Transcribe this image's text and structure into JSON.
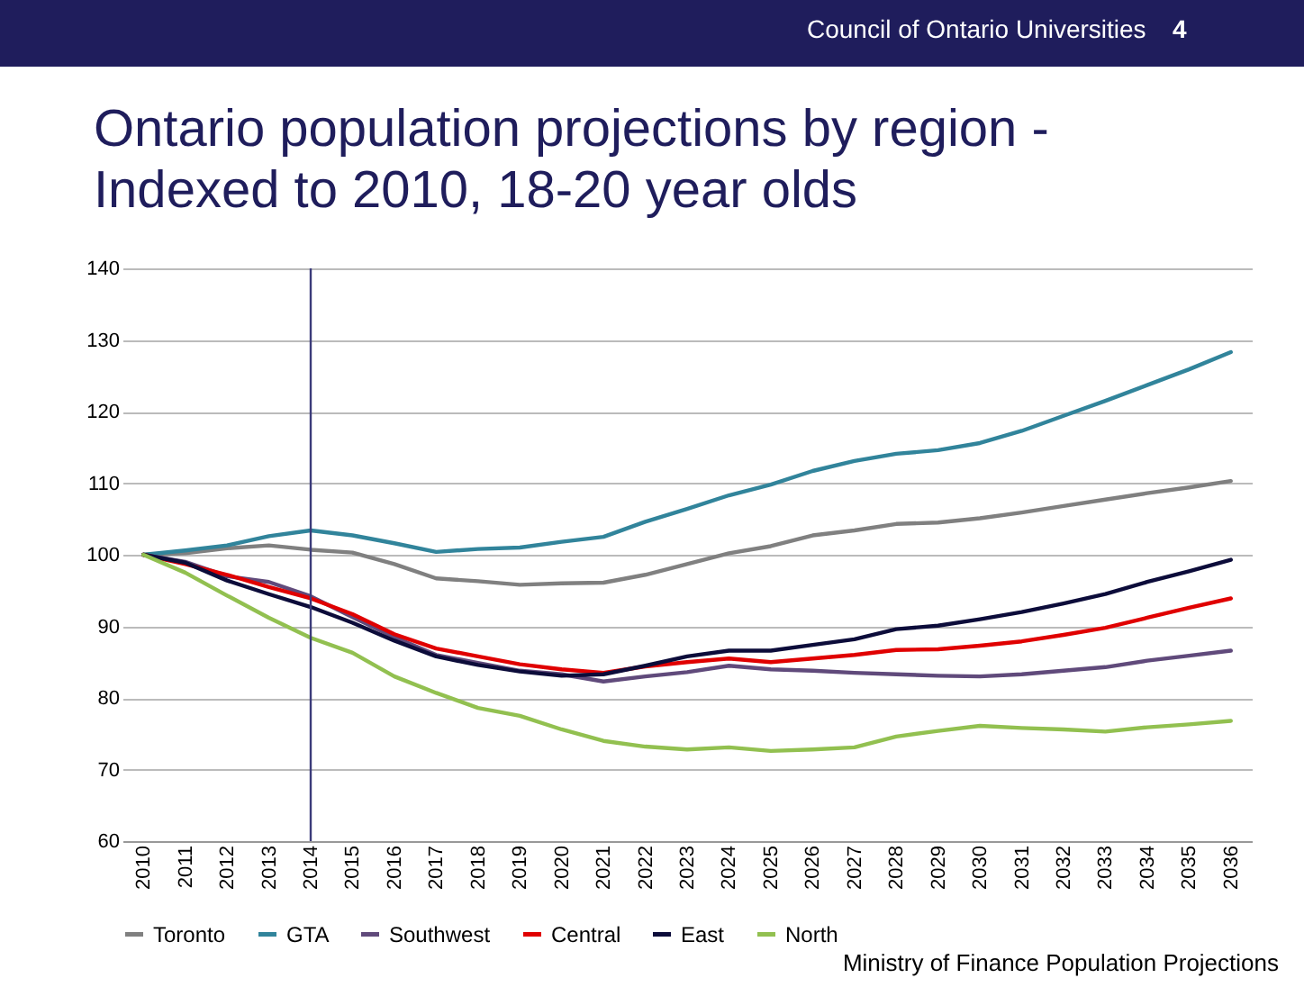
{
  "chart_data": {
    "type": "line",
    "title": "Ontario population projections by region - Indexed to 2010, 18-20 year olds",
    "annotations": [
      "Council of Ontario Universities",
      "4",
      "Ministry of Finance Population Projections"
    ],
    "categories": [
      "2010",
      "2011",
      "2012",
      "2013",
      "2014",
      "2015",
      "2016",
      "2017",
      "2018",
      "2019",
      "2020",
      "2021",
      "2022",
      "2023",
      "2024",
      "2025",
      "2026",
      "2027",
      "2028",
      "2029",
      "2030",
      "2031",
      "2032",
      "2033",
      "2034",
      "2035",
      "2036"
    ],
    "series": [
      {
        "name": "Toronto",
        "color": "#808080",
        "values": [
          100,
          100.2,
          100.9,
          101.3,
          100.7,
          100.3,
          98.7,
          96.7,
          96.3,
          95.8,
          96.0,
          96.1,
          97.2,
          98.7,
          100.2,
          101.2,
          102.7,
          103.4,
          104.3,
          104.5,
          105.1,
          105.9,
          106.8,
          107.7,
          108.6,
          109.4,
          110.3
        ]
      },
      {
        "name": "GTA",
        "color": "#31849b",
        "values": [
          100,
          100.6,
          101.3,
          102.6,
          103.4,
          102.7,
          101.6,
          100.4,
          100.8,
          101.0,
          101.8,
          102.5,
          104.6,
          106.4,
          108.3,
          109.8,
          111.7,
          113.1,
          114.1,
          114.6,
          115.6,
          117.3,
          119.4,
          121.5,
          123.7,
          125.9,
          128.3
        ]
      },
      {
        "name": "Southwest",
        "color": "#604a7b",
        "values": [
          100,
          99.0,
          97.0,
          96.2,
          94.2,
          91.3,
          88.5,
          86.0,
          84.9,
          83.8,
          83.3,
          82.3,
          83.0,
          83.6,
          84.5,
          84.0,
          83.8,
          83.5,
          83.3,
          83.1,
          83.0,
          83.3,
          83.8,
          84.3,
          85.2,
          85.9,
          86.6
        ]
      },
      {
        "name": "Central",
        "color": "#e00000",
        "values": [
          100,
          98.7,
          97.2,
          95.5,
          93.9,
          91.7,
          88.9,
          86.9,
          85.8,
          84.7,
          84.0,
          83.5,
          84.4,
          85.0,
          85.5,
          85.0,
          85.5,
          86.0,
          86.7,
          86.8,
          87.3,
          87.9,
          88.8,
          89.8,
          91.2,
          92.6,
          93.9
        ]
      },
      {
        "name": "East",
        "color": "#0c0c3a",
        "values": [
          100,
          98.9,
          96.4,
          94.5,
          92.7,
          90.5,
          88.0,
          85.8,
          84.6,
          83.7,
          83.1,
          83.3,
          84.5,
          85.8,
          86.6,
          86.6,
          87.4,
          88.2,
          89.6,
          90.1,
          91.0,
          92.0,
          93.2,
          94.5,
          96.2,
          97.7,
          99.3
        ]
      },
      {
        "name": "North",
        "color": "#92c050",
        "values": [
          100,
          97.5,
          94.3,
          91.2,
          88.4,
          86.3,
          83.0,
          80.7,
          78.6,
          77.5,
          75.6,
          74.0,
          73.2,
          72.8,
          73.1,
          72.6,
          72.8,
          73.1,
          74.6,
          75.4,
          76.1,
          75.8,
          75.6,
          75.3,
          75.9,
          76.3,
          76.8
        ]
      }
    ],
    "ylim": [
      60,
      140
    ],
    "yticks": [
      60,
      70,
      80,
      90,
      100,
      110,
      120,
      130,
      140
    ],
    "grid": "y",
    "legend": "bottom",
    "ref_lines": [
      {
        "axis": "x",
        "value": "2014",
        "color": "#3b3b7a"
      }
    ]
  }
}
